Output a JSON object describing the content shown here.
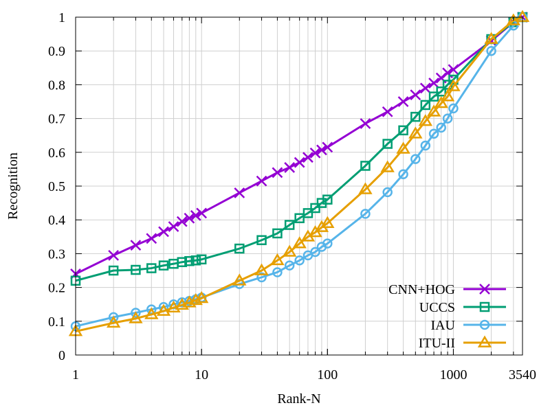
{
  "chart_data": {
    "type": "line",
    "title": "",
    "xlabel": "Rank-N",
    "ylabel": "Recognition",
    "xscale": "log",
    "xlim": [
      1,
      3540
    ],
    "ylim": [
      0,
      1
    ],
    "xticks": [
      1,
      10,
      100,
      1000,
      3540
    ],
    "xtick_labels": [
      "1",
      "10",
      "100",
      "1000",
      "3540"
    ],
    "yticks": [
      0,
      0.1,
      0.2,
      0.3,
      0.4,
      0.5,
      0.6,
      0.7,
      0.8,
      0.9,
      1
    ],
    "ytick_labels": [
      "0",
      "0.1",
      "0.2",
      "0.3",
      "0.4",
      "0.5",
      "0.6",
      "0.7",
      "0.8",
      "0.9",
      "1"
    ],
    "grid": true,
    "legend_position": "bottom-right",
    "x": [
      1,
      2,
      3,
      4,
      5,
      6,
      7,
      8,
      9,
      10,
      20,
      30,
      40,
      50,
      60,
      70,
      80,
      90,
      100,
      200,
      300,
      400,
      500,
      600,
      700,
      800,
      900,
      1000,
      2000,
      3000,
      3540
    ],
    "series": [
      {
        "name": "CNN+HOG",
        "color": "#9400d3",
        "marker": "x",
        "values": [
          0.24,
          0.295,
          0.325,
          0.345,
          0.365,
          0.38,
          0.395,
          0.405,
          0.413,
          0.42,
          0.48,
          0.515,
          0.54,
          0.555,
          0.57,
          0.585,
          0.598,
          0.607,
          0.615,
          0.685,
          0.72,
          0.75,
          0.77,
          0.79,
          0.805,
          0.82,
          0.835,
          0.845,
          0.93,
          0.985,
          1.0
        ]
      },
      {
        "name": "UCCS",
        "color": "#009e73",
        "marker": "square",
        "values": [
          0.22,
          0.25,
          0.252,
          0.257,
          0.265,
          0.27,
          0.275,
          0.278,
          0.28,
          0.283,
          0.315,
          0.34,
          0.36,
          0.385,
          0.405,
          0.42,
          0.435,
          0.45,
          0.46,
          0.56,
          0.625,
          0.665,
          0.705,
          0.74,
          0.765,
          0.78,
          0.8,
          0.815,
          0.935,
          0.985,
          1.0
        ]
      },
      {
        "name": "IAU",
        "color": "#56b4e9",
        "marker": "circle",
        "values": [
          0.085,
          0.112,
          0.125,
          0.135,
          0.142,
          0.15,
          0.156,
          0.16,
          0.165,
          0.17,
          0.21,
          0.23,
          0.245,
          0.265,
          0.28,
          0.295,
          0.305,
          0.32,
          0.33,
          0.418,
          0.482,
          0.535,
          0.58,
          0.62,
          0.655,
          0.673,
          0.7,
          0.73,
          0.9,
          0.975,
          1.0
        ]
      },
      {
        "name": "ITU-II",
        "color": "#e69f00",
        "marker": "triangle",
        "values": [
          0.07,
          0.095,
          0.108,
          0.12,
          0.13,
          0.14,
          0.148,
          0.155,
          0.162,
          0.168,
          0.22,
          0.25,
          0.28,
          0.305,
          0.33,
          0.35,
          0.363,
          0.378,
          0.39,
          0.49,
          0.555,
          0.61,
          0.655,
          0.692,
          0.72,
          0.745,
          0.765,
          0.795,
          0.935,
          0.99,
          1.0
        ]
      }
    ]
  }
}
